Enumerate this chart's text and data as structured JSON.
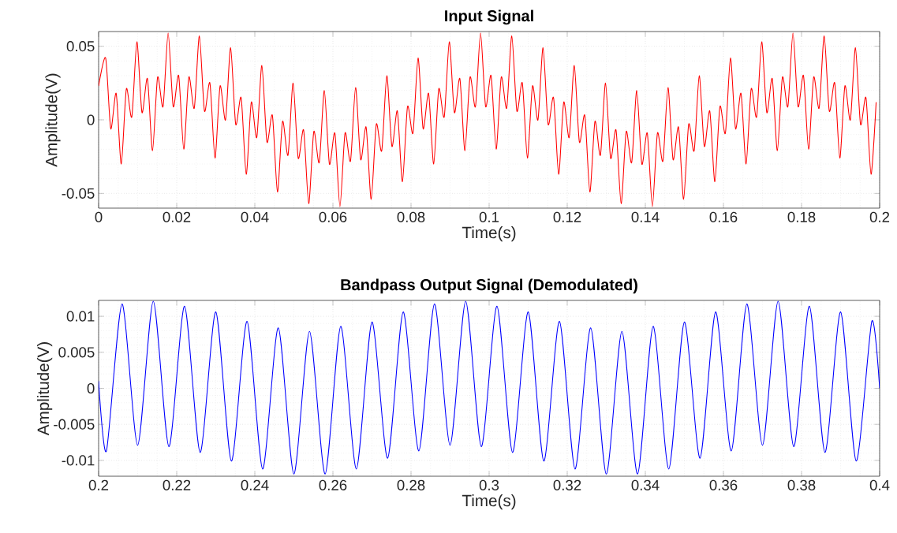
{
  "chart_data": [
    {
      "type": "line",
      "title": "Input Signal",
      "xlabel": "Time(s)",
      "ylabel": "Amplitude(V)",
      "xlim": [
        0,
        0.2
      ],
      "ylim": [
        -0.06,
        0.06
      ],
      "xticks": [
        0,
        0.02,
        0.04,
        0.06,
        0.08,
        0.1,
        0.12,
        0.14,
        0.16,
        0.18,
        0.2
      ],
      "yticks": [
        -0.05,
        0,
        0.05
      ],
      "grid": true,
      "series": [
        {
          "color": "#ff0000",
          "x": [
            0,
            0.0018,
            0.0031,
            0.0045,
            0.0058,
            0.0071,
            0.0085,
            0.0098,
            0.0111,
            0.0125,
            0.0138,
            0.0151,
            0.0165,
            0.0178,
            0.0191,
            0.0205,
            0.0218,
            0.0231,
            0.0245,
            0.0258,
            0.0271,
            0.0285,
            0.0298,
            0.0311,
            0.0325,
            0.0338,
            0.0351,
            0.0365,
            0.0378,
            0.0391,
            0.0405,
            0.0418,
            0.0431,
            0.0445,
            0.0458,
            0.0471,
            0.0485,
            0.0498,
            0.0511,
            0.0525,
            0.0538,
            0.0551,
            0.0565,
            0.0578,
            0.0591,
            0.0605,
            0.0618,
            0.0631,
            0.0645,
            0.0658,
            0.0671,
            0.0685,
            0.0698,
            0.0711,
            0.0725,
            0.0738,
            0.0751,
            0.0765,
            0.0778,
            0.0791,
            0.0805,
            0.0818,
            0.0831,
            0.0845,
            0.0858,
            0.0871,
            0.0885,
            0.0898,
            0.0911,
            0.0925,
            0.0938,
            0.0951,
            0.0965,
            0.0978,
            0.0991,
            0.1005,
            0.1018,
            0.1031,
            0.1045,
            0.1058,
            0.1071,
            0.1085,
            0.1098,
            0.1111,
            0.1125,
            0.1138,
            0.1151,
            0.1165,
            0.1178,
            0.1191,
            0.1205,
            0.1218,
            0.1231,
            0.1245,
            0.1258,
            0.1271,
            0.1285,
            0.1298,
            0.1311,
            0.1325,
            0.1338,
            0.1351,
            0.1365,
            0.1378,
            0.1391,
            0.1405,
            0.1418,
            0.1431,
            0.1445,
            0.1458,
            0.1471,
            0.1485,
            0.1498,
            0.1511,
            0.1525,
            0.1538,
            0.1551,
            0.1565,
            0.1578,
            0.1591,
            0.1605,
            0.1618,
            0.1631,
            0.1645,
            0.1658,
            0.1671,
            0.1685,
            0.1698,
            0.1711,
            0.1725,
            0.1738,
            0.1751,
            0.1765,
            0.1778,
            0.1791,
            0.1805,
            0.1818,
            0.1831,
            0.1845,
            0.1858,
            0.1871,
            0.1885,
            0.1898,
            0.1911,
            0.1925,
            0.1938,
            0.1951,
            0.1965,
            0.1978,
            0.1991
          ],
          "values": [
            0.023,
            0.042,
            -0.006,
            0.018,
            -0.03,
            0.021,
            0.002,
            0.053,
            0.005,
            0.028,
            -0.021,
            0.029,
            0.009,
            0.059,
            0.009,
            0.03,
            -0.02,
            0.029,
            0.008,
            0.057,
            0.006,
            0.025,
            -0.026,
            0.023,
            0.0,
            0.049,
            -0.003,
            0.015,
            -0.037,
            0.012,
            -0.012,
            0.037,
            -0.015,
            0.003,
            -0.049,
            -0.001,
            -0.024,
            0.025,
            -0.026,
            -0.007,
            -0.057,
            -0.008,
            -0.029,
            0.02,
            -0.03,
            -0.009,
            -0.059,
            -0.009,
            -0.028,
            0.022,
            -0.027,
            -0.005,
            -0.054,
            -0.003,
            -0.021,
            0.03,
            -0.018,
            0.006,
            -0.042,
            0.009,
            -0.009,
            0.042,
            -0.006,
            0.018,
            -0.03,
            0.021,
            0.002,
            0.053,
            0.005,
            0.028,
            -0.021,
            0.029,
            0.009,
            0.059,
            0.009,
            0.03,
            -0.02,
            0.029,
            0.008,
            0.057,
            0.006,
            0.025,
            -0.026,
            0.023,
            0.0,
            0.049,
            -0.003,
            0.015,
            -0.037,
            0.012,
            -0.012,
            0.037,
            -0.015,
            0.003,
            -0.049,
            -0.001,
            -0.024,
            0.025,
            -0.026,
            -0.007,
            -0.057,
            -0.008,
            -0.029,
            0.02,
            -0.03,
            -0.009,
            -0.059,
            -0.009,
            -0.028,
            0.022,
            -0.027,
            -0.005,
            -0.054,
            -0.003,
            -0.021,
            0.03,
            -0.018,
            0.006,
            -0.042,
            0.009,
            -0.009,
            0.042,
            -0.006,
            0.018,
            -0.03,
            0.021,
            0.002,
            0.053,
            0.005,
            0.028,
            -0.021,
            0.029,
            0.009,
            0.059,
            0.009,
            0.03,
            -0.02,
            0.029,
            0.008,
            0.057,
            0.006,
            0.025,
            -0.026,
            0.023,
            0.0,
            0.049,
            -0.003,
            0.015,
            -0.037,
            0.012
          ]
        }
      ]
    },
    {
      "type": "line",
      "title": "Bandpass Output Signal (Demodulated)",
      "xlabel": "Time(s)",
      "ylabel": "Amplitude(V)",
      "xlim": [
        0.2,
        0.4
      ],
      "ylim": [
        -0.0122,
        0.0122
      ],
      "xticks": [
        0.2,
        0.22,
        0.24,
        0.26,
        0.28,
        0.3,
        0.32,
        0.34,
        0.36,
        0.38,
        0.4
      ],
      "yticks": [
        -0.01,
        -0.005,
        0,
        0.005,
        0.01
      ],
      "grid": true,
      "series": [
        {
          "color": "#0000ff",
          "x": [
            0.2,
            0.202,
            0.206,
            0.21,
            0.214,
            0.218,
            0.222,
            0.226,
            0.23,
            0.234,
            0.238,
            0.242,
            0.246,
            0.25,
            0.254,
            0.258,
            0.262,
            0.266,
            0.27,
            0.274,
            0.278,
            0.282,
            0.286,
            0.29,
            0.294,
            0.298,
            0.302,
            0.306,
            0.31,
            0.314,
            0.318,
            0.322,
            0.326,
            0.33,
            0.334,
            0.338,
            0.342,
            0.346,
            0.35,
            0.354,
            0.358,
            0.362,
            0.366,
            0.37,
            0.374,
            0.378,
            0.382,
            0.386,
            0.39,
            0.394,
            0.398,
            0.4
          ],
          "values": [
            0.001,
            -0.0087,
            0.0117,
            -0.0079,
            0.0121,
            -0.0081,
            0.0114,
            -0.0089,
            0.0106,
            -0.0101,
            0.0093,
            -0.0112,
            0.0084,
            -0.0119,
            0.0079,
            -0.0119,
            0.0086,
            -0.0112,
            0.0092,
            -0.0097,
            0.0106,
            -0.0087,
            0.0117,
            -0.0079,
            0.0121,
            -0.0081,
            0.0114,
            -0.0089,
            0.0106,
            -0.0101,
            0.0093,
            -0.0112,
            0.0084,
            -0.0119,
            0.0079,
            -0.0119,
            0.0086,
            -0.0112,
            0.0092,
            -0.0097,
            0.0106,
            -0.0087,
            0.0117,
            -0.0079,
            0.0121,
            -0.0081,
            0.0114,
            -0.0089,
            0.0106,
            -0.0101,
            0.0093,
            0.0
          ]
        }
      ]
    }
  ]
}
